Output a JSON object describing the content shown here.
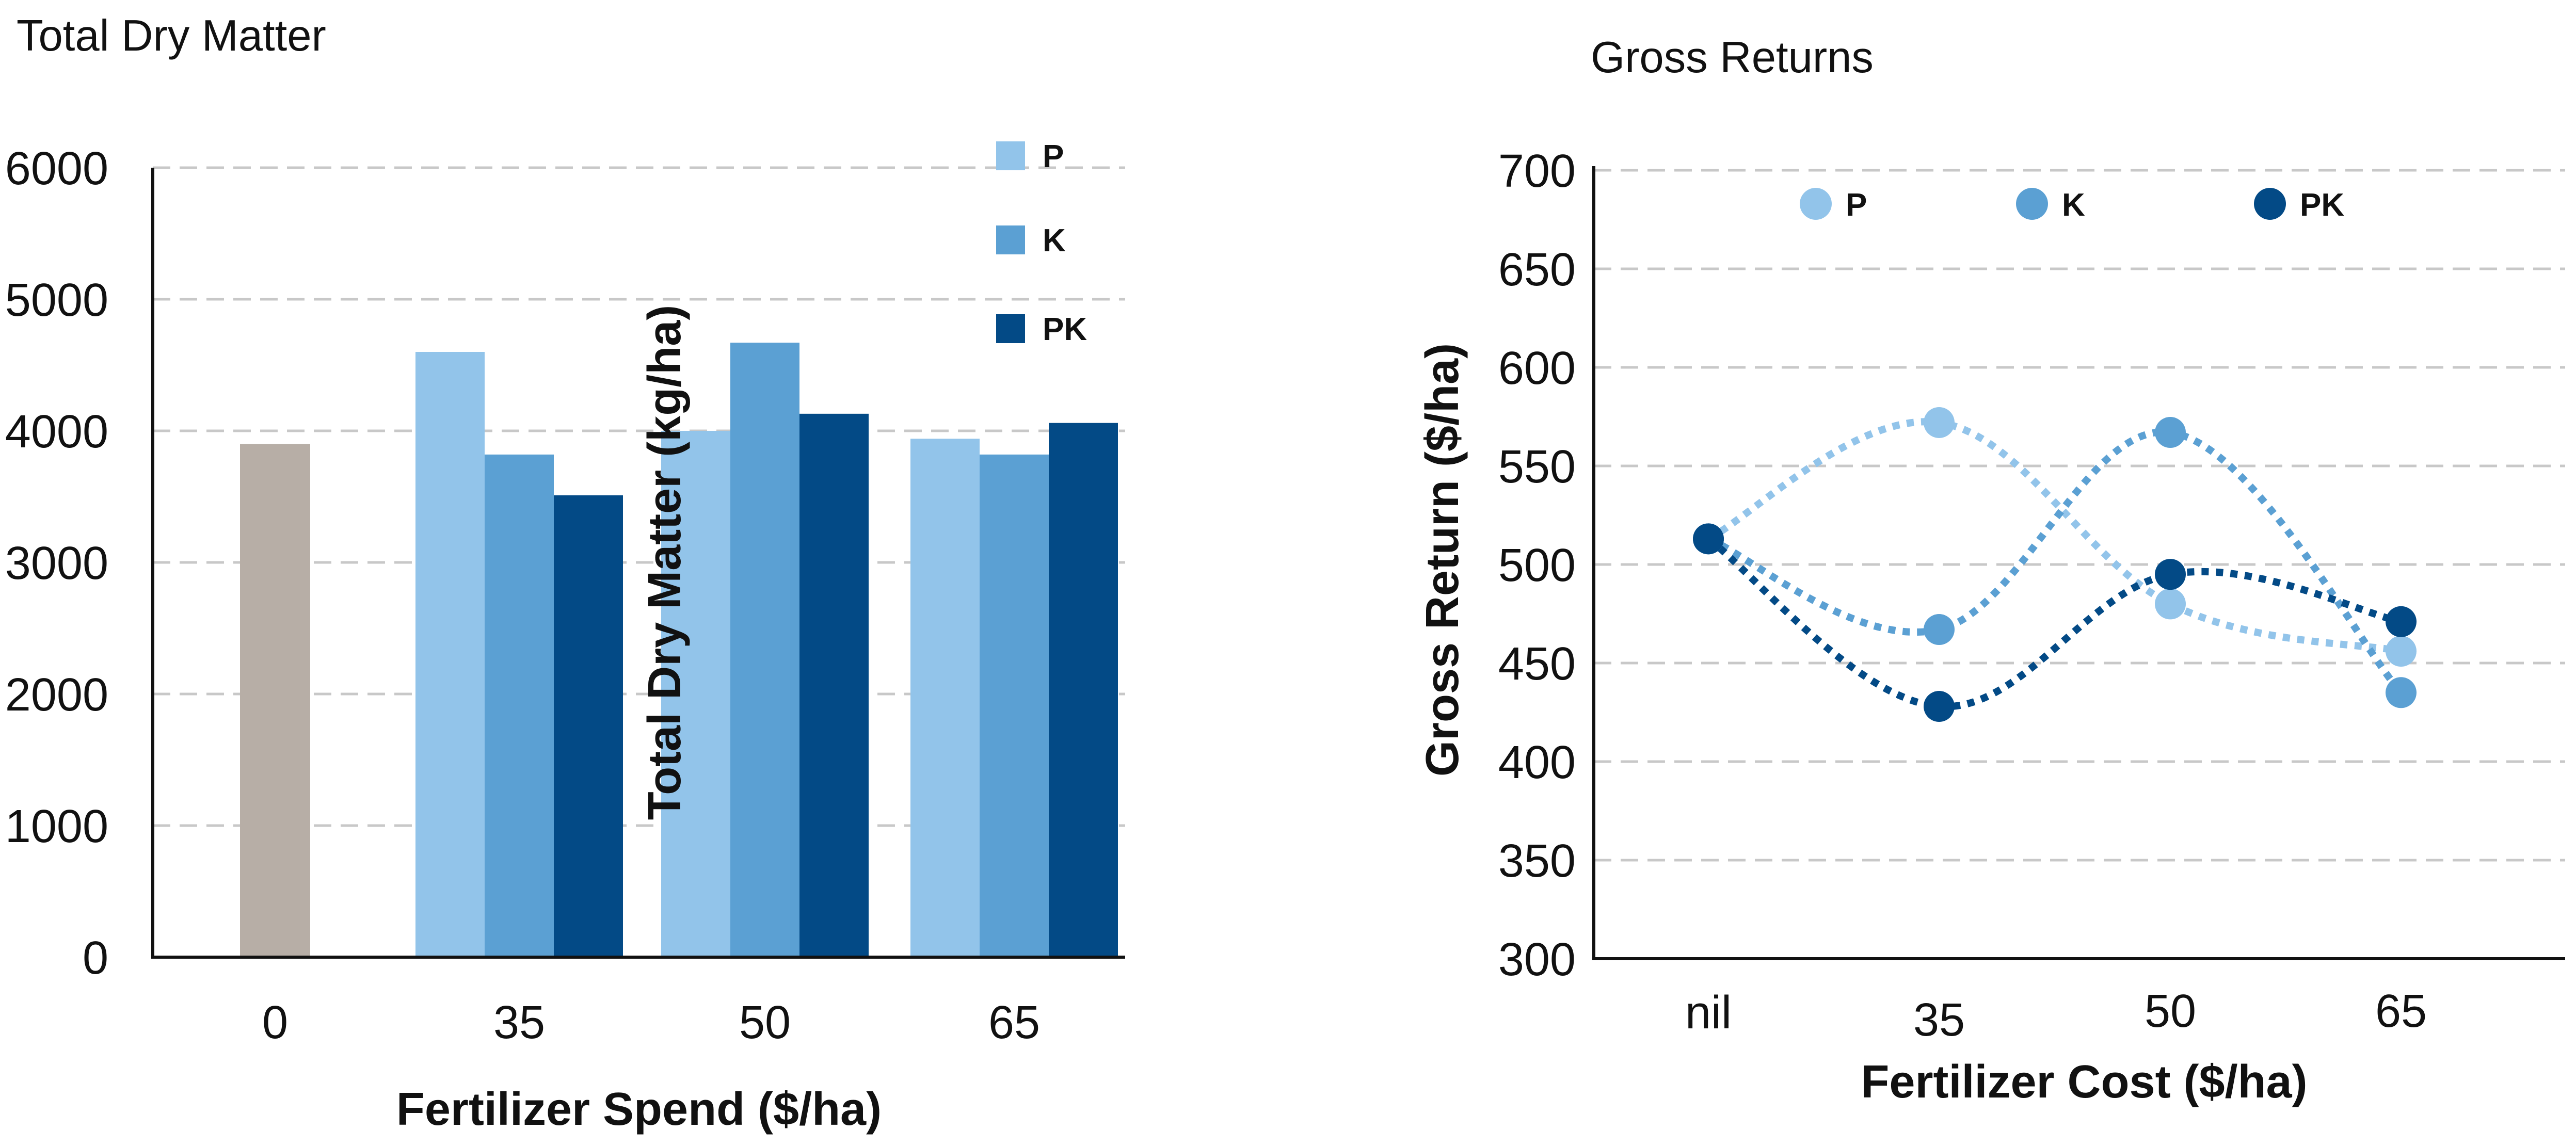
{
  "chart_data": [
    {
      "type": "bar",
      "title": "Total Dry Matter",
      "xlabel": "Fertilizer Spend ($/ha)",
      "ylabel": "Total Dry Matter (kg/ha)",
      "ylim": [
        0,
        6000
      ],
      "yticks": [
        "0",
        "1000",
        "2000",
        "3000",
        "4000",
        "5000",
        "6000"
      ],
      "categories": [
        "0",
        "35",
        "50",
        "65"
      ],
      "control": {
        "category": "0",
        "value": 3900,
        "color": "#b7aea6"
      },
      "series": [
        {
          "name": "P",
          "color": "#92c4ea",
          "values": [
            null,
            4600,
            4000,
            3940
          ]
        },
        {
          "name": "K",
          "color": "#5ba0d3",
          "values": [
            null,
            3820,
            4670,
            3820
          ]
        },
        {
          "name": "PK",
          "color": "#034a86",
          "values": [
            null,
            3510,
            4130,
            4060
          ]
        }
      ],
      "legend_position": "top-right",
      "grid": true
    },
    {
      "type": "line",
      "title": "Gross Returns",
      "xlabel": "Fertilizer Cost ($/ha)",
      "ylabel": "Gross Return ($/ha)",
      "ylim": [
        300,
        700
      ],
      "yticks": [
        "300",
        "350",
        "400",
        "450",
        "500",
        "550",
        "600",
        "650",
        "700"
      ],
      "categories": [
        "nil",
        "35",
        "50",
        "65"
      ],
      "series": [
        {
          "name": "P",
          "color": "#92c4ea",
          "values": [
            513,
            572,
            480,
            456
          ]
        },
        {
          "name": "K",
          "color": "#5ba0d3",
          "values": [
            513,
            467,
            567,
            435
          ]
        },
        {
          "name": "PK",
          "color": "#034a86",
          "values": [
            513,
            428,
            495,
            471
          ]
        }
      ],
      "legend_position": "top",
      "grid": true,
      "line_style": "dotted"
    }
  ]
}
